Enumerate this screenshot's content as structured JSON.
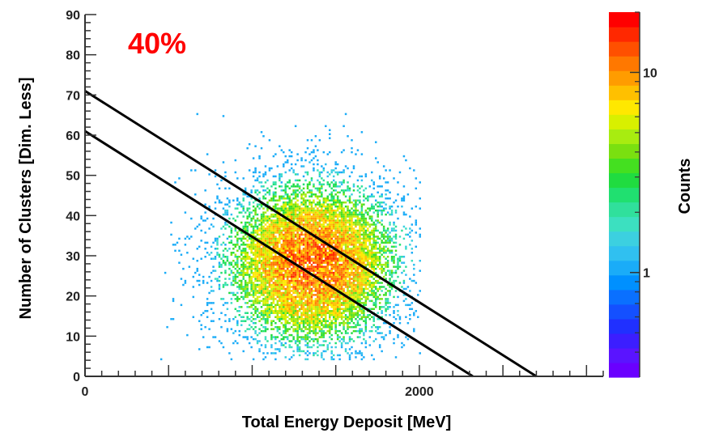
{
  "chart_data": {
    "type": "heatmap",
    "annotation": {
      "text": "40%",
      "color": "#ff0000"
    },
    "xlabel": "Total Energy Deposit [MeV]",
    "ylabel": "Number of Clusters [Dim. Less]",
    "colorbar_label": "Counts",
    "xlim": [
      0,
      3100
    ],
    "ylim": [
      0,
      90
    ],
    "x_ticks": [
      0,
      2000
    ],
    "x_tick_labels": [
      "0",
      "2000"
    ],
    "y_ticks": [
      0,
      10,
      20,
      30,
      40,
      50,
      60,
      70,
      80,
      90
    ],
    "y_tick_labels": [
      "0",
      "10",
      "20",
      "30",
      "40",
      "50",
      "60",
      "70",
      "80",
      "90"
    ],
    "z_scale": "log",
    "zlim": [
      0.3,
      20
    ],
    "z_ticks": [
      1,
      10
    ],
    "z_tick_labels": [
      "1",
      "10"
    ],
    "distribution": {
      "center_x": 1350,
      "center_y": 28,
      "sigma_x": 280,
      "sigma_y": 11,
      "x_range": [
        450,
        2000
      ],
      "y_range": [
        4,
        72
      ],
      "peak_counts": 12
    },
    "cut_lines": [
      {
        "name": "",
        "from": [
          0,
          71
        ],
        "to": [
          2700,
          0
        ],
        "color": "#000000"
      },
      {
        "name": "",
        "from": [
          0,
          61
        ],
        "to": [
          2320,
          0
        ],
        "color": "#000000"
      }
    ],
    "palette": [
      "#6a00ff",
      "#5a14ff",
      "#3c1eff",
      "#2030ff",
      "#1450ff",
      "#0a70ff",
      "#0090ff",
      "#1aacf8",
      "#30c0f0",
      "#3cd0e0",
      "#3ce0c0",
      "#30e09c",
      "#20e070",
      "#20dc40",
      "#44e020",
      "#7ae010",
      "#a8ec10",
      "#d8f000",
      "#ffe800",
      "#ffc000",
      "#ff9c00",
      "#ff7800",
      "#ff5000",
      "#ff2800",
      "#ff0000"
    ],
    "grid": false
  }
}
